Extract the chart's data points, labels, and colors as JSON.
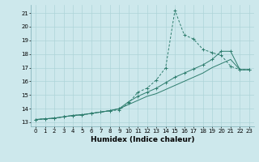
{
  "xlabel": "Humidex (Indice chaleur)",
  "bg_color": "#cde8ec",
  "grid_color": "#aed4d8",
  "line_color": "#2e7d6e",
  "xlim": [
    -0.5,
    23.5
  ],
  "ylim": [
    12.7,
    21.6
  ],
  "xticks": [
    0,
    1,
    2,
    3,
    4,
    5,
    6,
    7,
    8,
    9,
    10,
    11,
    12,
    13,
    14,
    15,
    16,
    17,
    18,
    19,
    20,
    21,
    22,
    23
  ],
  "yticks": [
    13,
    14,
    15,
    16,
    17,
    18,
    19,
    20,
    21
  ],
  "line1_x": [
    0,
    1,
    2,
    3,
    4,
    5,
    6,
    7,
    8,
    9,
    10,
    11,
    12,
    13,
    14,
    15,
    16,
    17,
    18,
    19,
    20,
    21,
    22,
    23
  ],
  "line1_y": [
    13.2,
    13.25,
    13.3,
    13.4,
    13.5,
    13.55,
    13.65,
    13.75,
    13.85,
    13.9,
    14.4,
    15.2,
    15.5,
    16.1,
    17.0,
    21.2,
    19.4,
    19.1,
    18.35,
    18.1,
    17.9,
    17.1,
    16.85,
    16.85
  ],
  "line2_x": [
    0,
    1,
    2,
    3,
    4,
    5,
    6,
    7,
    8,
    9,
    10,
    11,
    12,
    13,
    14,
    15,
    16,
    17,
    18,
    19,
    20,
    21,
    22,
    23
  ],
  "line2_y": [
    13.2,
    13.25,
    13.3,
    13.4,
    13.5,
    13.55,
    13.65,
    13.75,
    13.85,
    14.0,
    14.5,
    14.9,
    15.2,
    15.5,
    15.9,
    16.3,
    16.6,
    16.9,
    17.2,
    17.6,
    18.2,
    18.2,
    16.85,
    16.85
  ],
  "line3_x": [
    0,
    1,
    2,
    3,
    4,
    5,
    6,
    7,
    8,
    9,
    10,
    11,
    12,
    13,
    14,
    15,
    16,
    17,
    18,
    19,
    20,
    21,
    22,
    23
  ],
  "line3_y": [
    13.2,
    13.25,
    13.3,
    13.4,
    13.5,
    13.55,
    13.65,
    13.75,
    13.85,
    14.0,
    14.3,
    14.6,
    14.9,
    15.1,
    15.4,
    15.7,
    16.0,
    16.3,
    16.6,
    17.0,
    17.3,
    17.6,
    16.85,
    16.85
  ],
  "tick_fontsize": 5.0,
  "xlabel_fontsize": 6.5
}
